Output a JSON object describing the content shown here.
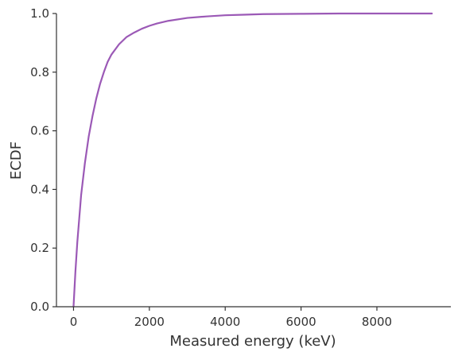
{
  "chart_data": {
    "type": "line",
    "subtype": "ecdf",
    "title": "",
    "xlabel": "Measured energy (keV)",
    "ylabel": "ECDF",
    "xlim": [
      -450,
      9950
    ],
    "ylim": [
      0,
      1
    ],
    "xticks": [
      0,
      2000,
      4000,
      6000,
      8000
    ],
    "xtick_labels": [
      "0",
      "2000",
      "4000",
      "6000",
      "8000"
    ],
    "yticks": [
      0.0,
      0.2,
      0.4,
      0.6,
      0.8,
      1.0
    ],
    "ytick_labels": [
      "0.0",
      "0.2",
      "0.4",
      "0.6",
      "0.8",
      "1.0"
    ],
    "grid": false,
    "legend": "none",
    "spines": [
      "left",
      "bottom"
    ],
    "series": [
      {
        "color": "#9b59b6",
        "x": [
          0,
          50,
          100,
          150,
          200,
          300,
          400,
          500,
          600,
          700,
          800,
          900,
          1000,
          1200,
          1400,
          1600,
          1800,
          2000,
          2200,
          2500,
          3000,
          3500,
          4000,
          4500,
          5000,
          6000,
          7000,
          8000,
          9000,
          9450
        ],
        "y": [
          0.0,
          0.12,
          0.22,
          0.3,
          0.38,
          0.49,
          0.58,
          0.65,
          0.71,
          0.76,
          0.8,
          0.835,
          0.86,
          0.895,
          0.92,
          0.935,
          0.948,
          0.958,
          0.966,
          0.975,
          0.985,
          0.99,
          0.994,
          0.996,
          0.998,
          0.999,
          1.0,
          1.0,
          1.0,
          1.0
        ]
      }
    ]
  }
}
